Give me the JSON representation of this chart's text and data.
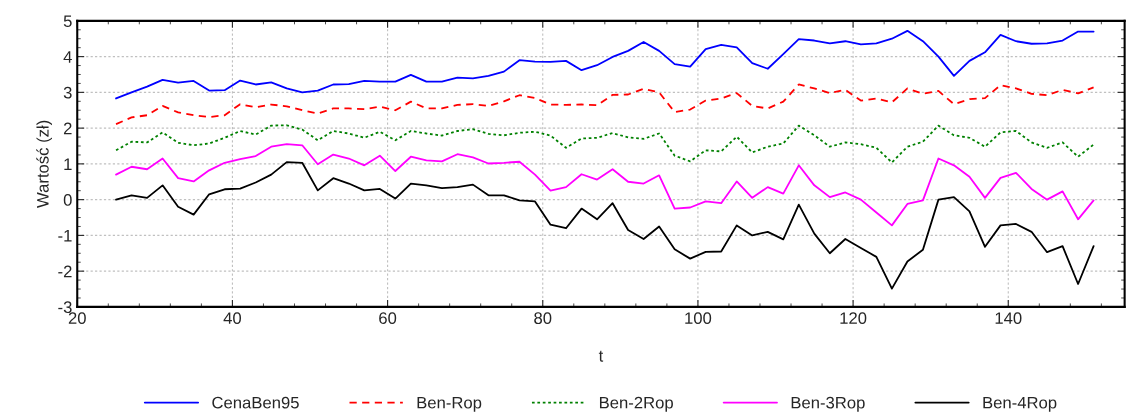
{
  "chart_data": {
    "type": "line",
    "xlabel": "t",
    "ylabel": "Wartość (zł)",
    "x": [
      25,
      27,
      29,
      31,
      33,
      35,
      37,
      39,
      41,
      43,
      45,
      47,
      49,
      51,
      53,
      55,
      57,
      59,
      61,
      63,
      65,
      67,
      69,
      71,
      73,
      75,
      77,
      79,
      81,
      83,
      85,
      87,
      89,
      91,
      93,
      95,
      97,
      99,
      101,
      103,
      105,
      107,
      109,
      111,
      113,
      115,
      117,
      119,
      121,
      123,
      125,
      127,
      129,
      131,
      133,
      135,
      137,
      139,
      141,
      143,
      145,
      147,
      149,
      151
    ],
    "xlim": [
      20,
      155
    ],
    "xticks": [
      20,
      40,
      60,
      80,
      100,
      120,
      140
    ],
    "ylim": [
      -3,
      5
    ],
    "yticks": [
      -3,
      -2,
      -1,
      0,
      1,
      2,
      3,
      4,
      5
    ],
    "grid": true,
    "legend": "bottom",
    "marker": "none",
    "series": [
      {
        "name": "CenaBen95",
        "color": "#0000ff",
        "line_style": "solid",
        "values": [
          2.83,
          3.0,
          3.16,
          3.35,
          3.27,
          3.32,
          3.05,
          3.06,
          3.33,
          3.22,
          3.28,
          3.11,
          3.0,
          3.05,
          3.22,
          3.23,
          3.32,
          3.3,
          3.3,
          3.49,
          3.3,
          3.3,
          3.41,
          3.39,
          3.46,
          3.58,
          3.9,
          3.86,
          3.85,
          3.88,
          3.62,
          3.76,
          3.99,
          4.16,
          4.41,
          4.16,
          3.79,
          3.72,
          4.21,
          4.33,
          4.26,
          3.82,
          3.66,
          4.07,
          4.49,
          4.45,
          4.37,
          4.43,
          4.34,
          4.37,
          4.5,
          4.72,
          4.43,
          4.0,
          3.46,
          3.88,
          4.12,
          4.61,
          4.43,
          4.36,
          4.37,
          4.45,
          4.7,
          4.7
        ]
      },
      {
        "name": "Ben-Rop",
        "color": "#ff0000",
        "line_style": "dashed",
        "values": [
          2.11,
          2.3,
          2.36,
          2.62,
          2.44,
          2.36,
          2.31,
          2.36,
          2.67,
          2.58,
          2.66,
          2.61,
          2.5,
          2.41,
          2.55,
          2.55,
          2.53,
          2.6,
          2.5,
          2.74,
          2.55,
          2.55,
          2.65,
          2.67,
          2.62,
          2.75,
          2.92,
          2.84,
          2.66,
          2.65,
          2.66,
          2.64,
          2.93,
          2.94,
          3.1,
          3.0,
          2.45,
          2.52,
          2.77,
          2.83,
          2.98,
          2.62,
          2.55,
          2.74,
          3.22,
          3.11,
          2.98,
          3.07,
          2.77,
          2.83,
          2.72,
          3.11,
          2.96,
          3.04,
          2.67,
          2.81,
          2.84,
          3.2,
          3.11,
          2.96,
          2.92,
          3.07,
          2.97,
          3.14
        ]
      },
      {
        "name": "Ben-2Rop",
        "color": "#008000",
        "line_style": "dotted",
        "values": [
          1.38,
          1.62,
          1.6,
          1.88,
          1.59,
          1.52,
          1.57,
          1.73,
          1.92,
          1.82,
          2.07,
          2.08,
          1.96,
          1.66,
          1.92,
          1.85,
          1.73,
          1.9,
          1.66,
          1.92,
          1.85,
          1.79,
          1.92,
          1.97,
          1.84,
          1.8,
          1.87,
          1.9,
          1.79,
          1.45,
          1.71,
          1.73,
          1.86,
          1.74,
          1.7,
          1.85,
          1.23,
          1.07,
          1.38,
          1.35,
          1.76,
          1.32,
          1.48,
          1.57,
          2.07,
          1.8,
          1.48,
          1.6,
          1.55,
          1.45,
          1.04,
          1.48,
          1.62,
          2.07,
          1.8,
          1.73,
          1.48,
          1.88,
          1.92,
          1.6,
          1.45,
          1.6,
          1.2,
          1.54
        ]
      },
      {
        "name": "Ben-3Rop",
        "color": "#ff00ff",
        "line_style": "solid",
        "values": [
          0.7,
          0.92,
          0.85,
          1.15,
          0.6,
          0.51,
          0.82,
          1.03,
          1.13,
          1.22,
          1.48,
          1.55,
          1.52,
          0.99,
          1.26,
          1.15,
          0.96,
          1.23,
          0.8,
          1.2,
          1.1,
          1.07,
          1.27,
          1.18,
          1.01,
          1.03,
          1.06,
          0.7,
          0.25,
          0.35,
          0.71,
          0.56,
          0.85,
          0.5,
          0.45,
          0.68,
          -0.25,
          -0.22,
          -0.05,
          -0.1,
          0.51,
          0.05,
          0.35,
          0.17,
          0.96,
          0.4,
          0.07,
          0.2,
          0.0,
          -0.36,
          -0.72,
          -0.12,
          -0.02,
          1.15,
          0.96,
          0.64,
          0.05,
          0.61,
          0.75,
          0.3,
          0.0,
          0.23,
          -0.55,
          -0.02
        ]
      },
      {
        "name": "Ben-4Rop",
        "color": "#000000",
        "line_style": "solid",
        "values": [
          0.0,
          0.12,
          0.05,
          0.4,
          -0.2,
          -0.42,
          0.15,
          0.29,
          0.31,
          0.48,
          0.7,
          1.05,
          1.03,
          0.26,
          0.6,
          0.45,
          0.26,
          0.3,
          0.03,
          0.45,
          0.4,
          0.32,
          0.35,
          0.42,
          0.12,
          0.12,
          -0.02,
          -0.05,
          -0.7,
          -0.8,
          -0.25,
          -0.55,
          -0.1,
          -0.85,
          -1.1,
          -0.75,
          -1.39,
          -1.65,
          -1.46,
          -1.45,
          -0.72,
          -1.0,
          -0.9,
          -1.11,
          -0.14,
          -0.95,
          -1.5,
          -1.1,
          -1.35,
          -1.6,
          -2.49,
          -1.73,
          -1.4,
          0.0,
          0.07,
          -0.33,
          -1.32,
          -0.72,
          -0.68,
          -0.9,
          -1.47,
          -1.3,
          -2.36,
          -1.3
        ]
      }
    ]
  }
}
